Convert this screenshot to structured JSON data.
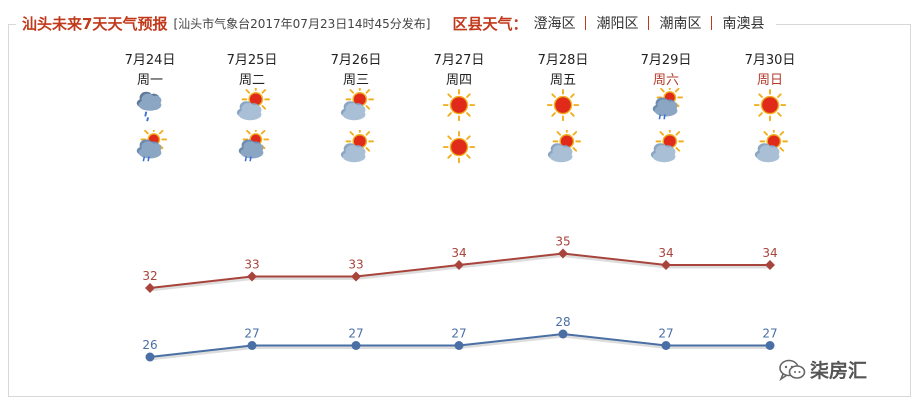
{
  "header": {
    "title": "汕头未来7天天气预报",
    "publish": "[汕头市气象台2017年07月23日14时45分发布]",
    "county_title": "区县天气：",
    "counties": [
      "澄海区",
      "潮阳区",
      "潮南区",
      "南澳县"
    ]
  },
  "days": [
    {
      "date": "7月24日",
      "weekday": "周一",
      "weekend": false,
      "icon_day": "cloud-rain-icon",
      "icon_night": "cloud-rain-sun-icon"
    },
    {
      "date": "7月25日",
      "weekday": "周二",
      "weekend": false,
      "icon_day": "sun-cloud-icon",
      "icon_night": "cloud-rain-sun-icon"
    },
    {
      "date": "7月26日",
      "weekday": "周三",
      "weekend": false,
      "icon_day": "sun-cloud-icon",
      "icon_night": "sun-cloud-icon"
    },
    {
      "date": "7月27日",
      "weekday": "周四",
      "weekend": false,
      "icon_day": "sun-icon",
      "icon_night": "sun-icon"
    },
    {
      "date": "7月28日",
      "weekday": "周五",
      "weekend": false,
      "icon_day": "sun-icon",
      "icon_night": "sun-cloud-icon"
    },
    {
      "date": "7月29日",
      "weekday": "周六",
      "weekend": true,
      "icon_day": "cloud-rain-sun-icon",
      "icon_night": "sun-cloud-icon"
    },
    {
      "date": "7月30日",
      "weekday": "周日",
      "weekend": true,
      "icon_day": "sun-icon",
      "icon_night": "sun-cloud-icon"
    }
  ],
  "chart_data": {
    "type": "line",
    "categories": [
      "7月24日",
      "7月25日",
      "7月26日",
      "7月27日",
      "7月28日",
      "7月29日",
      "7月30日"
    ],
    "series": [
      {
        "values": [
          32,
          33,
          33,
          34,
          35,
          34,
          34
        ],
        "color": "#a8443c"
      },
      {
        "values": [
          26,
          27,
          27,
          27,
          28,
          27,
          27
        ],
        "color": "#4a6fa5"
      }
    ]
  },
  "watermark": {
    "text": "柒房汇",
    "icon": "wechat-icon"
  },
  "colors": {
    "accent": "#c1391b",
    "weekend": "#b33a2a",
    "high": "#a8443c",
    "low": "#4a6fa5"
  }
}
